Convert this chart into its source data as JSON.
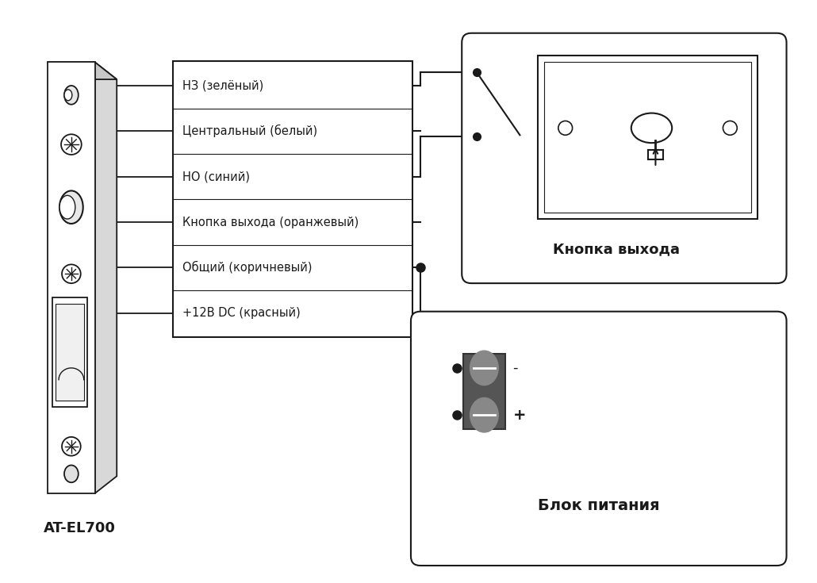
{
  "bg_color": "#ffffff",
  "line_color": "#1a1a1a",
  "wire_labels": [
    "НЗ (зелёный)",
    "Центральный (белый)",
    "НО (синий)",
    "Кнопка выхода (оранжевый)",
    "Общий (коричневый)",
    "+12В DC (красный)"
  ],
  "exit_button_label": "Кнопка выхода",
  "power_supply_label": "Блок питания",
  "device_label": "AT-EL700",
  "minus_label": "-",
  "plus_label": "+"
}
